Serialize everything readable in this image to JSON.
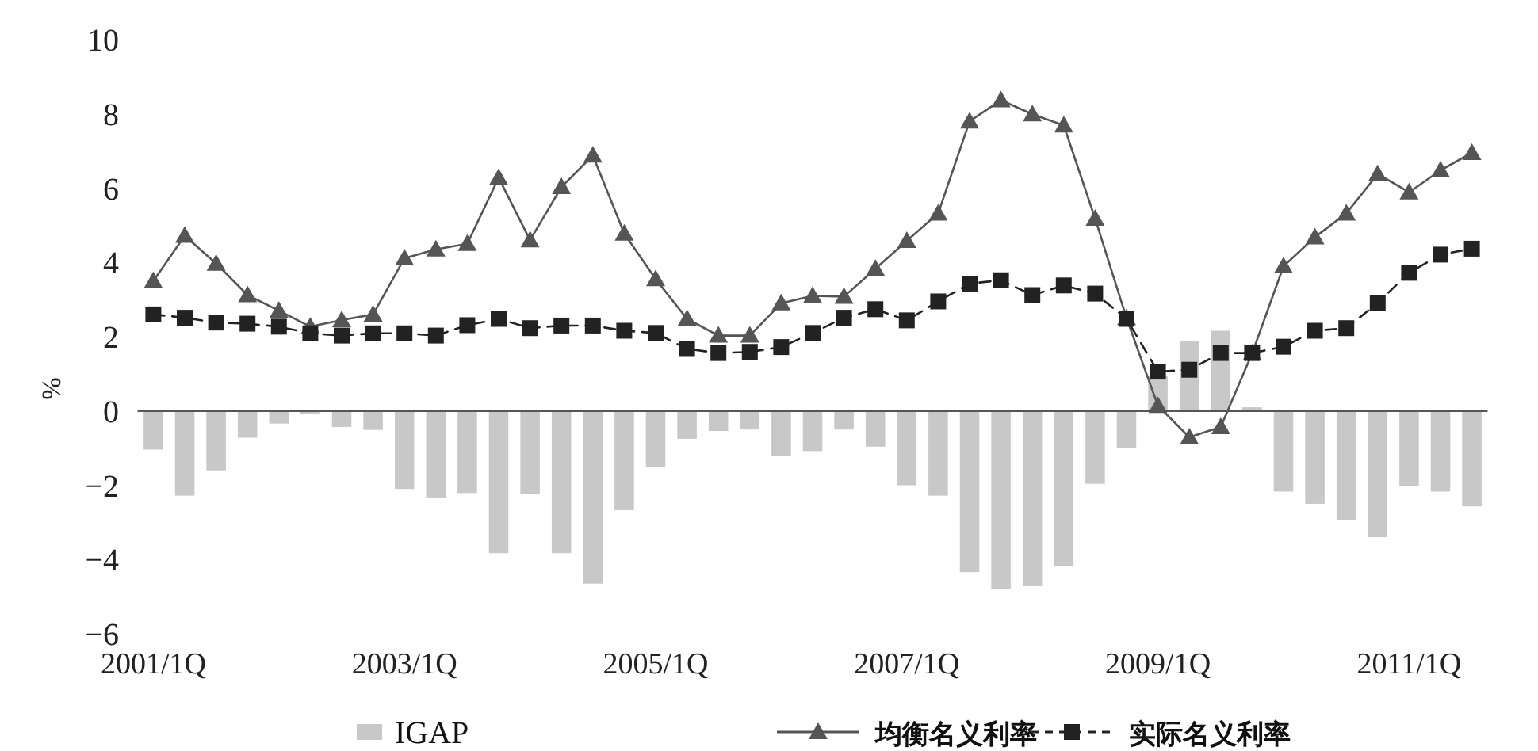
{
  "chart_data": {
    "type": "bar",
    "ylabel": "%",
    "categories": [
      "2001/1Q",
      null,
      null,
      null,
      null,
      null,
      null,
      null,
      "2003/1Q",
      null,
      null,
      null,
      null,
      null,
      null,
      null,
      "2005/1Q",
      null,
      null,
      null,
      null,
      null,
      null,
      null,
      "2007/1Q",
      null,
      null,
      null,
      null,
      null,
      null,
      null,
      "2009/1Q",
      null,
      null,
      null,
      null,
      null,
      null,
      null,
      "2011/1Q",
      null,
      null
    ],
    "ylim": [
      -6,
      10
    ],
    "yticks": [
      {
        "value": -6,
        "label": "−6"
      },
      {
        "value": -4,
        "label": "−4"
      },
      {
        "value": -2,
        "label": "−2"
      },
      0,
      2,
      4,
      6,
      8,
      10
    ],
    "grid": false,
    "legend": "bottom",
    "ref_lines": [
      {
        "axis": "y",
        "value": 0,
        "color": "#555555"
      }
    ],
    "series": [
      {
        "name": "IGAP",
        "color": "#c8c8c8",
        "values": [
          -1.04,
          -2.28,
          -1.6,
          -0.72,
          -0.34,
          -0.08,
          -0.43,
          -0.51,
          -2.1,
          -2.35,
          -2.21,
          -3.83,
          -2.24,
          -3.83,
          -4.65,
          -2.67,
          -1.5,
          -0.75,
          -0.54,
          -0.5,
          -1.2,
          -1.08,
          -0.5,
          -0.96,
          -2.0,
          -2.28,
          -4.34,
          -4.79,
          -4.72,
          -4.18,
          -1.96,
          -0.99,
          0.95,
          1.87,
          2.16,
          0.1,
          -2.17,
          -2.5,
          -2.95,
          -3.4,
          -2.03,
          -2.17,
          -2.57
        ]
      },
      {
        "name": "均衡名义利率",
        "type": "line",
        "color": "#555555",
        "marker": "triangle",
        "line_style": "solid",
        "values": [
          3.5,
          4.72,
          3.97,
          3.12,
          2.7,
          2.27,
          2.45,
          2.6,
          4.11,
          4.35,
          4.5,
          6.28,
          4.6,
          6.03,
          6.88,
          4.78,
          3.55,
          2.48,
          2.03,
          2.03,
          2.9,
          3.1,
          3.08,
          3.83,
          4.58,
          5.32,
          7.8,
          8.37,
          7.99,
          7.69,
          5.18,
          2.5,
          0.14,
          -0.71,
          -0.43,
          1.55,
          3.9,
          4.68,
          5.32,
          6.38,
          5.89,
          6.48,
          6.95
        ]
      },
      {
        "name": "实际名义利率",
        "type": "line",
        "color": "#222222",
        "marker": "square",
        "line_style": "dashed",
        "values": [
          2.6,
          2.51,
          2.38,
          2.35,
          2.27,
          2.09,
          2.03,
          2.09,
          2.09,
          2.03,
          2.31,
          2.48,
          2.23,
          2.3,
          2.3,
          2.16,
          2.1,
          1.67,
          1.56,
          1.59,
          1.72,
          2.1,
          2.51,
          2.74,
          2.44,
          2.95,
          3.43,
          3.52,
          3.12,
          3.38,
          3.16,
          2.48,
          1.06,
          1.11,
          1.56,
          1.56,
          1.73,
          2.16,
          2.23,
          2.91,
          3.72,
          4.21,
          4.37
        ]
      }
    ]
  }
}
